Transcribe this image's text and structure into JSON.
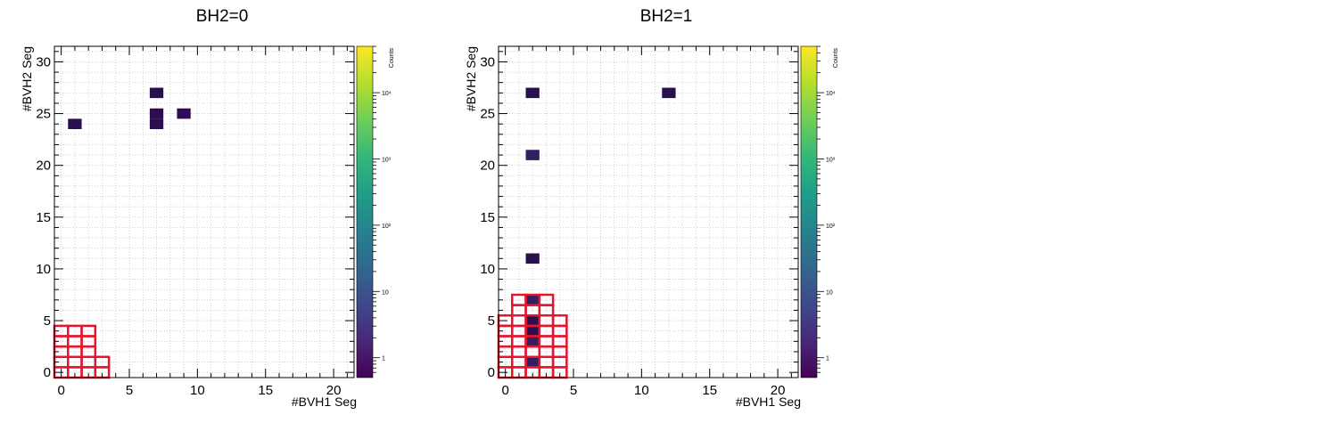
{
  "chart_data": [
    {
      "type": "heatmap",
      "title": "BH2=0",
      "xlabel": "#BVH1 Seg",
      "ylabel": "#BVH2 Seg",
      "xlim": [
        -0.5,
        21.5
      ],
      "ylim": [
        -0.5,
        31.5
      ],
      "x_ticks": [
        0,
        5,
        10,
        15,
        20
      ],
      "y_ticks": [
        0,
        5,
        10,
        15,
        20,
        25,
        30
      ],
      "grid": true,
      "colorbar": {
        "label": "Counts",
        "scale": "log",
        "ticks": [
          "1",
          "10",
          "10²",
          "10³",
          "10⁴"
        ]
      },
      "cells": [
        {
          "x": 1,
          "y": 24,
          "value": 1
        },
        {
          "x": 7,
          "y": 27,
          "value": 1
        },
        {
          "x": 7,
          "y": 25,
          "value": 1
        },
        {
          "x": 7,
          "y": 24,
          "value": 1
        },
        {
          "x": 9,
          "y": 25,
          "value": 1
        }
      ],
      "highlight_boxes": [
        {
          "x": 0,
          "y": 0
        },
        {
          "x": 1,
          "y": 0
        },
        {
          "x": 2,
          "y": 0
        },
        {
          "x": 3,
          "y": 0
        },
        {
          "x": 0,
          "y": 1
        },
        {
          "x": 1,
          "y": 1
        },
        {
          "x": 2,
          "y": 1
        },
        {
          "x": 3,
          "y": 1
        },
        {
          "x": 0,
          "y": 2
        },
        {
          "x": 1,
          "y": 2
        },
        {
          "x": 2,
          "y": 2
        },
        {
          "x": 0,
          "y": 3
        },
        {
          "x": 1,
          "y": 3
        },
        {
          "x": 2,
          "y": 3
        },
        {
          "x": 0,
          "y": 4
        },
        {
          "x": 1,
          "y": 4
        },
        {
          "x": 2,
          "y": 4
        }
      ],
      "highlight_color": "#e8132f"
    },
    {
      "type": "heatmap",
      "title": "BH2=1",
      "xlabel": "#BVH1 Seg",
      "ylabel": "#BVH2 Seg",
      "xlim": [
        -0.5,
        21.5
      ],
      "ylim": [
        -0.5,
        31.5
      ],
      "x_ticks": [
        0,
        5,
        10,
        15,
        20
      ],
      "y_ticks": [
        0,
        5,
        10,
        15,
        20,
        25,
        30
      ],
      "grid": true,
      "colorbar": {
        "label": "Counts",
        "scale": "log",
        "ticks": [
          "1",
          "10",
          "10²",
          "10³",
          "10⁴"
        ]
      },
      "cells": [
        {
          "x": 2,
          "y": 27,
          "value": 1
        },
        {
          "x": 12,
          "y": 27,
          "value": 1
        },
        {
          "x": 2,
          "y": 21,
          "value": 2
        },
        {
          "x": 2,
          "y": 11,
          "value": 1
        },
        {
          "x": 2,
          "y": 7,
          "value": 2
        },
        {
          "x": 2,
          "y": 5,
          "value": 1
        },
        {
          "x": 2,
          "y": 4,
          "value": 1
        },
        {
          "x": 2,
          "y": 3,
          "value": 2
        },
        {
          "x": 2,
          "y": 1,
          "value": 2
        }
      ],
      "highlight_boxes": [
        {
          "x": 0,
          "y": 0
        },
        {
          "x": 1,
          "y": 0
        },
        {
          "x": 2,
          "y": 0
        },
        {
          "x": 3,
          "y": 0
        },
        {
          "x": 4,
          "y": 0
        },
        {
          "x": 0,
          "y": 1
        },
        {
          "x": 1,
          "y": 1
        },
        {
          "x": 2,
          "y": 1
        },
        {
          "x": 3,
          "y": 1
        },
        {
          "x": 4,
          "y": 1
        },
        {
          "x": 0,
          "y": 2
        },
        {
          "x": 1,
          "y": 2
        },
        {
          "x": 2,
          "y": 2
        },
        {
          "x": 3,
          "y": 2
        },
        {
          "x": 4,
          "y": 2
        },
        {
          "x": 0,
          "y": 3
        },
        {
          "x": 1,
          "y": 3
        },
        {
          "x": 2,
          "y": 3
        },
        {
          "x": 3,
          "y": 3
        },
        {
          "x": 4,
          "y": 3
        },
        {
          "x": 0,
          "y": 4
        },
        {
          "x": 1,
          "y": 4
        },
        {
          "x": 2,
          "y": 4
        },
        {
          "x": 3,
          "y": 4
        },
        {
          "x": 4,
          "y": 4
        },
        {
          "x": 0,
          "y": 5
        },
        {
          "x": 1,
          "y": 5
        },
        {
          "x": 2,
          "y": 5
        },
        {
          "x": 3,
          "y": 5
        },
        {
          "x": 4,
          "y": 5
        },
        {
          "x": 1,
          "y": 6
        },
        {
          "x": 2,
          "y": 6
        },
        {
          "x": 3,
          "y": 6
        },
        {
          "x": 1,
          "y": 7
        },
        {
          "x": 2,
          "y": 7
        },
        {
          "x": 3,
          "y": 7
        }
      ],
      "highlight_color": "#e8132f"
    }
  ]
}
